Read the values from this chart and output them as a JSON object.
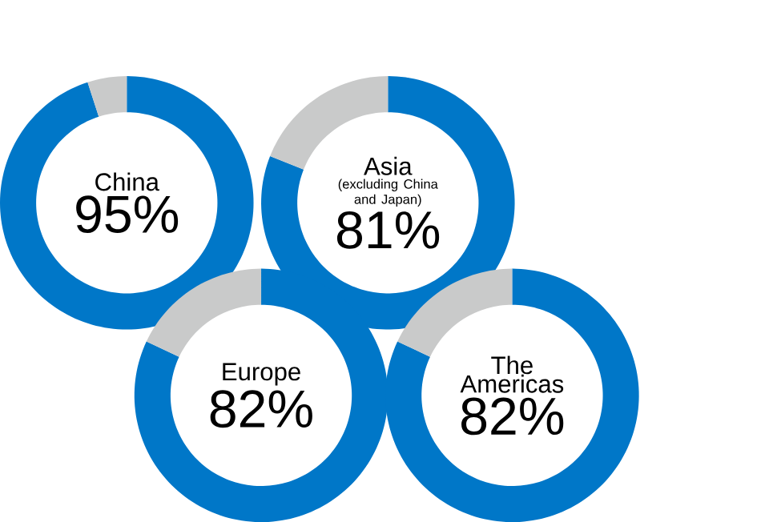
{
  "chart_data": [
    {
      "type": "donut",
      "title": "China",
      "categories": [
        null,
        null
      ],
      "values": [
        95,
        5
      ],
      "colors": [
        "#0077c8",
        "#c9caca"
      ],
      "value_labels": [
        "95%",
        null
      ]
    },
    {
      "type": "donut",
      "title": "Asia",
      "subtitle": "(excluding China and Japan)",
      "categories": [
        null,
        null
      ],
      "values": [
        81,
        19
      ],
      "colors": [
        "#0077c8",
        "#c9caca"
      ],
      "value_labels": [
        "81%",
        null
      ]
    },
    {
      "type": "donut",
      "title": "Europe",
      "categories": [
        null,
        null
      ],
      "values": [
        82,
        18
      ],
      "colors": [
        "#0077c8",
        "#c9caca"
      ],
      "value_labels": [
        "82%",
        null
      ]
    },
    {
      "type": "donut",
      "title": "The Americas",
      "categories": [
        null,
        null
      ],
      "values": [
        82,
        18
      ],
      "colors": [
        "#0077c8",
        "#c9caca"
      ],
      "value_labels": [
        "82%",
        null
      ]
    }
  ]
}
